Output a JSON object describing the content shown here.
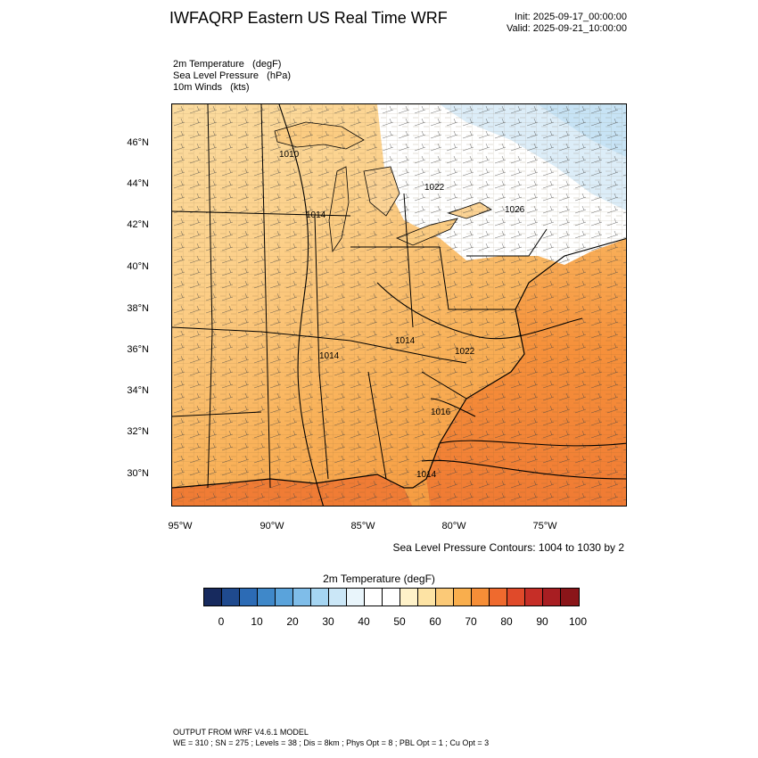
{
  "header": {
    "title": "IWFAQRP Eastern US Real Time WRF",
    "init": "Init: 2025-09-17_00:00:00",
    "valid": "Valid: 2025-09-21_10:00:00"
  },
  "fields": [
    "2m Temperature   (degF)",
    "Sea Level Pressure   (hPa)",
    "10m Winds   (kts)"
  ],
  "map": {
    "lat_labels": [
      "46°N",
      "44°N",
      "42°N",
      "40°N",
      "38°N",
      "36°N",
      "34°N",
      "32°N",
      "30°N"
    ],
    "lon_labels": [
      "95°W",
      "90°W",
      "85°W",
      "80°W",
      "75°W"
    ],
    "pressure_labels": [
      "1010",
      "1022",
      "1014",
      "1026",
      "1014",
      "1014",
      "1022",
      "1016",
      "1014"
    ],
    "slp_note": "Sea Level Pressure Contours: 1004 to 1030 by 2"
  },
  "colorbar": {
    "title": "2m Temperature  (degF)",
    "colors": [
      "#172a5e",
      "#1f4a8e",
      "#2c6bb5",
      "#3f88c9",
      "#5aa3db",
      "#7fbde9",
      "#a5d5f2",
      "#cbe7f7",
      "#e9f5fb",
      "#ffffff",
      "#ffffff",
      "#fff2c9",
      "#fde3a4",
      "#fbc977",
      "#f9ae4d",
      "#f68e37",
      "#ef6a2e",
      "#e04a2a",
      "#c62e27",
      "#a81e22",
      "#8a1519"
    ],
    "ticks": [
      "0",
      "10",
      "20",
      "30",
      "40",
      "50",
      "60",
      "70",
      "80",
      "90",
      "100"
    ]
  },
  "footer": {
    "line1": "OUTPUT FROM WRF V4.6.1 MODEL",
    "line2": "WE = 310 ; SN = 275 ; Levels = 38 ; Dis = 8km ; Phys Opt = 8 ; PBL Opt = 1 ; Cu Opt = 3"
  }
}
